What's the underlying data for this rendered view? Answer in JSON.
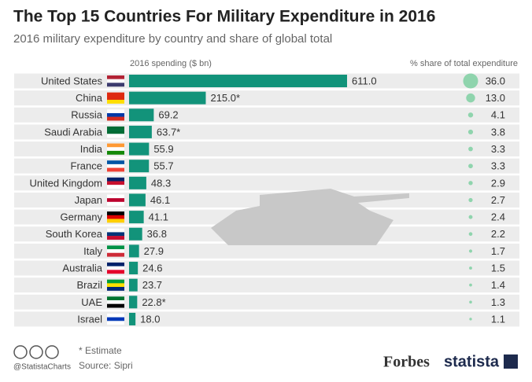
{
  "chart_data": {
    "type": "bar",
    "title": "The Top 15 Countries For Military Expenditure in 2016",
    "subtitle": "2016 military expenditure by country and share of global total",
    "categories": [
      "United States",
      "China",
      "Russia",
      "Saudi Arabia",
      "India",
      "France",
      "United Kingdom",
      "Japan",
      "Germany",
      "South Korea",
      "Italy",
      "Australia",
      "Brazil",
      "UAE",
      "Israel"
    ],
    "series": [
      {
        "name": "2016 spending ($ bn)",
        "color": "#12937a",
        "values": [
          611,
          215,
          69.2,
          63.7,
          55.9,
          55.7,
          48.3,
          46.1,
          41.1,
          36.8,
          27.9,
          24.6,
          23.7,
          22.8,
          18
        ],
        "value_labels": [
          "611.0",
          "215.0*",
          "69.2",
          "63.7*",
          "55.9",
          "55.7",
          "48.3",
          "46.1",
          "41.1",
          "36.8",
          "27.9",
          "24.6",
          "23.7",
          "22.8*",
          "18.0"
        ]
      },
      {
        "name": "% share of total expenditure",
        "color": "#8fd4ad",
        "values": [
          36,
          13,
          4.1,
          3.8,
          3.3,
          3.3,
          2.9,
          2.7,
          2.4,
          2.2,
          1.7,
          1.5,
          1.4,
          1.3,
          1.1
        ],
        "value_labels": [
          "36.0",
          "13.0",
          "4.1",
          "3.8",
          "3.3",
          "3.3",
          "2.9",
          "2.7",
          "2.4",
          "2.2",
          "1.7",
          "1.5",
          "1.4",
          "1.3",
          "1.1"
        ]
      }
    ],
    "footer": {
      "note": "* Estimate",
      "source": "Source: Sipri",
      "handle": "@StatistaCharts",
      "partner": "Forbes",
      "brand": "statista"
    }
  }
}
